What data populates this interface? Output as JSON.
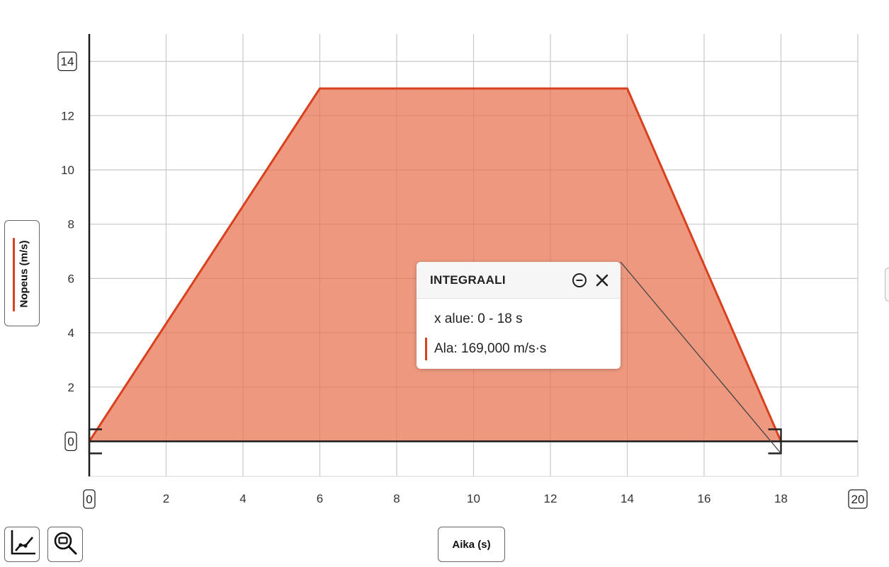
{
  "chart_data": {
    "type": "area",
    "x": [
      0,
      6,
      14,
      18
    ],
    "series": [
      {
        "values": [
          0,
          13,
          13,
          0
        ],
        "color": "#d9411e",
        "fill": "#e8714e"
      }
    ],
    "xlim": [
      0,
      20
    ],
    "ylim": [
      -1.3,
      15
    ],
    "x_ticks": [
      2,
      4,
      6,
      8,
      10,
      12,
      14,
      16,
      18
    ],
    "x_tick_labels": [
      "2",
      "4",
      "6",
      "8",
      "10",
      "12",
      "14",
      "16",
      "18"
    ],
    "y_ticks": [
      2,
      4,
      6,
      8,
      10,
      12
    ],
    "y_tick_labels": [
      "2",
      "4",
      "6",
      "8",
      "10",
      "12"
    ],
    "x_bound_labels": {
      "min": "0",
      "max": "20"
    },
    "y_bound_labels": {
      "min": "0",
      "max": "14"
    },
    "xlabel": "Aika (s)",
    "ylabel": "Nopeus (m/s)",
    "grid": true,
    "integral_range": [
      0,
      18
    ]
  },
  "integral_popup": {
    "title": "INTEGRAALI",
    "range_text": "x alue: 0 - 18 s",
    "area_text": "Ala: 169,000 m/s·s",
    "minimize_icon": "minus-circle-icon",
    "close_icon": "close-icon"
  },
  "toolbar": {
    "tool_1_icon": "line-chart-icon",
    "tool_2_icon": "zoom-icon"
  },
  "colors": {
    "series_line": "#d9411e",
    "area_fill": "#e8714e",
    "grid": "#c8c8c8",
    "axis": "#1a1a1a"
  }
}
